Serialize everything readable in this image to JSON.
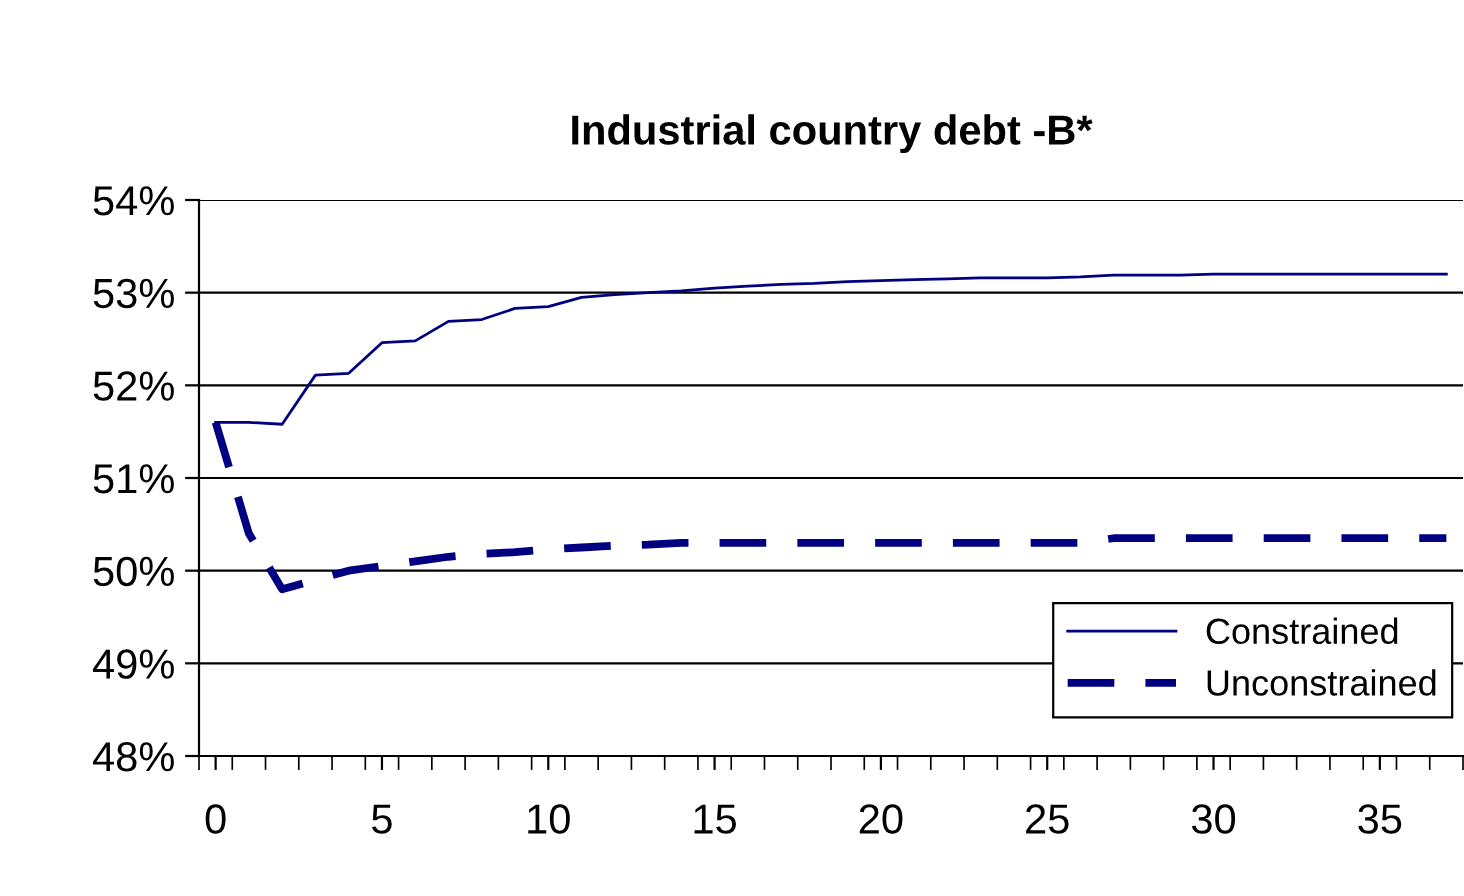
{
  "chart_data": {
    "type": "line",
    "title": "Industrial country debt -B*",
    "x": [
      0,
      1,
      2,
      3,
      4,
      5,
      6,
      7,
      8,
      9,
      10,
      11,
      12,
      13,
      14,
      15,
      16,
      17,
      18,
      19,
      20,
      21,
      22,
      23,
      24,
      25,
      26,
      27,
      28,
      29,
      30,
      31,
      32,
      33,
      34,
      35,
      36,
      37
    ],
    "series": [
      {
        "name": "Constrained",
        "color": "#000080",
        "line_style": "solid",
        "values": [
          51.6,
          51.6,
          51.58,
          52.11,
          52.13,
          52.46,
          52.48,
          52.69,
          52.71,
          52.83,
          52.85,
          52.95,
          52.98,
          53.0,
          53.02,
          53.05,
          53.07,
          53.09,
          53.1,
          53.12,
          53.13,
          53.14,
          53.15,
          53.16,
          53.16,
          53.16,
          53.17,
          53.19,
          53.19,
          53.19,
          53.2,
          53.2,
          53.2,
          53.2,
          53.2,
          53.2,
          53.2,
          53.2
        ]
      },
      {
        "name": "Unconstrained",
        "color": "#000080",
        "line_style": "dashed",
        "values": [
          51.6,
          50.4,
          49.8,
          49.9,
          50.0,
          50.05,
          50.1,
          50.15,
          50.18,
          50.2,
          50.23,
          50.25,
          50.27,
          50.28,
          50.3,
          50.3,
          50.3,
          50.3,
          50.3,
          50.3,
          50.3,
          50.3,
          50.3,
          50.3,
          50.3,
          50.3,
          50.3,
          50.35,
          50.35,
          50.35,
          50.35,
          50.35,
          50.35,
          50.35,
          50.35,
          50.35,
          50.35,
          50.35
        ]
      }
    ],
    "xlim": [
      -0.5,
      37.5
    ],
    "xticks": [
      0,
      5,
      10,
      15,
      20,
      25,
      30,
      35
    ],
    "ylim": [
      48,
      54
    ],
    "yticks": [
      {
        "value": 48,
        "label": "48%"
      },
      {
        "value": 49,
        "label": "49%"
      },
      {
        "value": 50,
        "label": "50%"
      },
      {
        "value": 51,
        "label": "51%"
      },
      {
        "value": 52,
        "label": "52%"
      },
      {
        "value": 53,
        "label": "53%"
      },
      {
        "value": 54,
        "label": "54%"
      }
    ],
    "grid": "y",
    "legend": "bottom right",
    "marker": "none"
  }
}
